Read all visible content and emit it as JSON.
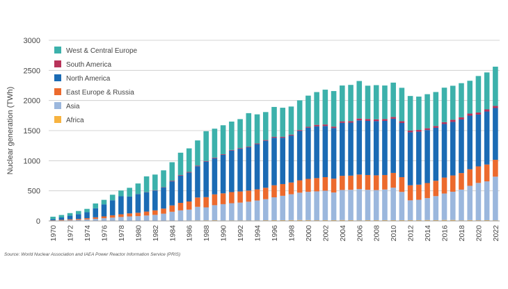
{
  "chart_data": {
    "type": "bar",
    "stacked": true,
    "ylabel": "Nuclear generation (TWh)",
    "xlabel": "",
    "ylim": [
      0,
      3000
    ],
    "yticks": [
      0,
      500,
      1000,
      1500,
      2000,
      2500,
      3000
    ],
    "ytick_labels": [
      "0",
      "500",
      "1000",
      "1500",
      "2000",
      "2500",
      "3000"
    ],
    "grid": true,
    "legend_position": "top-left",
    "categories": [
      1970,
      1971,
      1972,
      1973,
      1974,
      1975,
      1976,
      1977,
      1978,
      1979,
      1980,
      1981,
      1982,
      1983,
      1984,
      1985,
      1986,
      1987,
      1988,
      1989,
      1990,
      1991,
      1992,
      1993,
      1994,
      1995,
      1996,
      1997,
      1998,
      1999,
      2000,
      2001,
      2002,
      2003,
      2004,
      2005,
      2006,
      2007,
      2008,
      2009,
      2010,
      2011,
      2012,
      2013,
      2014,
      2015,
      2016,
      2017,
      2018,
      2019,
      2020,
      2021,
      2022
    ],
    "tick_labels": [
      "1970",
      "1972",
      "1974",
      "1976",
      "1978",
      "1980",
      "1982",
      "1984",
      "1986",
      "1988",
      "1990",
      "1992",
      "1994",
      "1996",
      "1998",
      "2000",
      "2002",
      "2004",
      "2006",
      "2008",
      "2010",
      "2012",
      "2014",
      "2016",
      "2018",
      "2020",
      "2022"
    ],
    "series": [
      {
        "name": "Africa",
        "color": "#f7b340",
        "values": [
          0,
          0,
          0,
          0,
          0,
          0,
          0,
          0,
          0,
          0,
          0,
          0,
          0,
          0,
          2,
          5,
          8,
          9,
          10,
          11,
          8,
          9,
          9,
          9,
          9,
          11,
          12,
          12,
          13,
          14,
          13,
          11,
          12,
          12,
          14,
          12,
          10,
          12,
          12,
          12,
          12,
          12,
          12,
          12,
          14,
          12,
          15,
          15,
          10,
          13,
          11,
          12,
          10
        ]
      },
      {
        "name": "Asia",
        "color": "#9bb7dd",
        "values": [
          5,
          8,
          14,
          18,
          25,
          35,
          45,
          55,
          65,
          75,
          80,
          90,
          100,
          120,
          150,
          170,
          180,
          225,
          215,
          250,
          270,
          285,
          295,
          310,
          330,
          350,
          380,
          405,
          430,
          455,
          470,
          480,
          490,
          460,
          500,
          505,
          520,
          505,
          500,
          510,
          540,
          470,
          330,
          340,
          365,
          400,
          440,
          470,
          510,
          570,
          620,
          645,
          725
        ]
      },
      {
        "name": "East Europe & Russia",
        "color": "#ec6a2d",
        "values": [
          5,
          10,
          12,
          15,
          20,
          25,
          30,
          38,
          45,
          50,
          55,
          65,
          75,
          85,
          105,
          125,
          135,
          155,
          170,
          180,
          180,
          185,
          185,
          185,
          185,
          190,
          200,
          195,
          195,
          205,
          215,
          220,
          225,
          230,
          235,
          235,
          240,
          245,
          245,
          240,
          245,
          245,
          250,
          250,
          250,
          255,
          265,
          270,
          275,
          275,
          275,
          280,
          280
        ]
      },
      {
        "name": "North America",
        "color": "#1b6bb4",
        "values": [
          20,
          40,
          60,
          80,
          100,
          150,
          200,
          250,
          300,
          280,
          310,
          320,
          330,
          350,
          400,
          450,
          480,
          520,
          590,
          600,
          640,
          690,
          710,
          720,
          750,
          780,
          790,
          770,
          780,
          820,
          850,
          860,
          850,
          840,
          880,
          880,
          900,
          900,
          900,
          900,
          900,
          900,
          880,
          880,
          880,
          880,
          890,
          890,
          890,
          890,
          860,
          880,
          860
        ]
      },
      {
        "name": "South America",
        "color": "#b8335a",
        "values": [
          0,
          0,
          0,
          0,
          0,
          0,
          0,
          0,
          0,
          0,
          2,
          3,
          5,
          5,
          10,
          10,
          10,
          10,
          10,
          10,
          10,
          10,
          10,
          10,
          12,
          12,
          15,
          15,
          15,
          15,
          15,
          25,
          25,
          25,
          25,
          25,
          30,
          30,
          30,
          30,
          30,
          30,
          30,
          30,
          30,
          30,
          30,
          35,
          35,
          35,
          35,
          35,
          35
        ]
      },
      {
        "name": "West & Central Europe",
        "color": "#3cb1ab",
        "values": [
          40,
          40,
          44,
          52,
          55,
          80,
          75,
          92,
          95,
          145,
          175,
          262,
          260,
          280,
          308,
          373,
          392,
          418,
          495,
          481,
          481,
          471,
          482,
          556,
          484,
          465,
          496,
          483,
          467,
          494,
          518,
          544,
          578,
          590,
          595,
          602,
          624,
          554,
          568,
          557,
          570,
          554,
          573,
          553,
          566,
          564,
          573,
          565,
          568,
          545,
          606,
          614,
          652
        ]
      }
    ]
  },
  "source_note": "Source: World Nuclear Association and IAEA Power Reactor Information Service (PRIS)"
}
